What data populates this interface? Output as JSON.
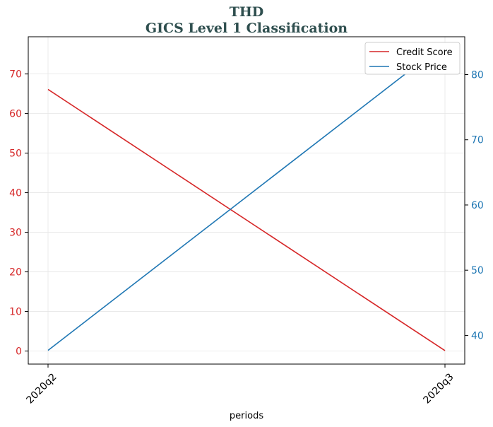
{
  "chart_data": {
    "type": "line",
    "title": "THD",
    "subtitle": "GICS Level 1 Classification",
    "xlabel": "periods",
    "categories": [
      "2020q2",
      "2020q3"
    ],
    "y_left": {
      "ticks": [
        0,
        10,
        20,
        30,
        40,
        50,
        60,
        70
      ],
      "range": [
        -3.3,
        79.4
      ],
      "color": "#d62728"
    },
    "y_right": {
      "ticks": [
        40,
        50,
        60,
        70,
        80
      ],
      "range": [
        35.6,
        85.8
      ],
      "color": "#1f77b4"
    },
    "series": [
      {
        "name": "Credit Score",
        "axis": "left",
        "values": [
          66.1,
          0.1
        ],
        "color": "#d62728"
      },
      {
        "name": "Stock Price",
        "axis": "right",
        "values": [
          37.7,
          84.8
        ],
        "color": "#1f77b4"
      }
    ],
    "grid": true,
    "legend_position": "top-right"
  }
}
